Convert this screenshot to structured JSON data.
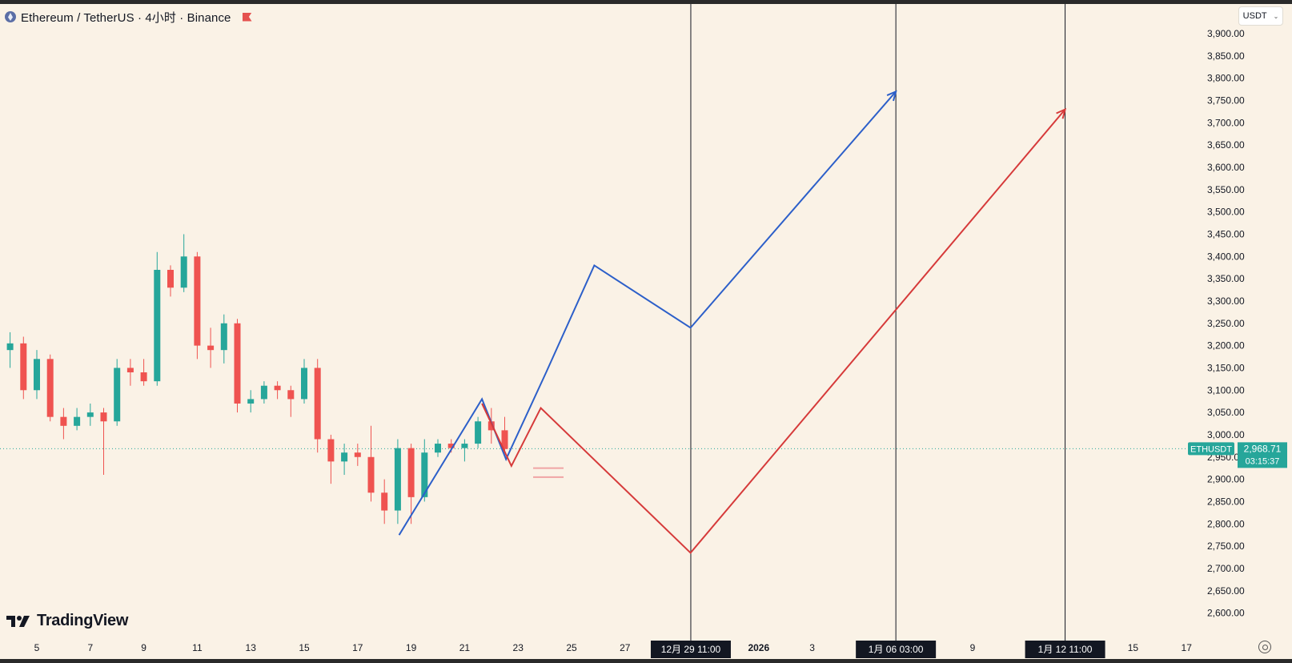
{
  "header": {
    "title": "Ethereum / TetherUS · 4小时 · Binance"
  },
  "currency_selector": {
    "label": "USDT"
  },
  "watermark": {
    "text": "TradingView"
  },
  "last_price": {
    "symbol": "ETHUSDT",
    "price": "2,968.71",
    "countdown": "03:15:37",
    "value": 2968.71
  },
  "colors": {
    "background": "#faf2e6",
    "up": "#26a69a",
    "down": "#ef5350",
    "blue_path": "#2c5fc9",
    "red_path": "#d63a3a",
    "price_tag": "#26a69a"
  },
  "icons": [
    "ethereum-logo-icon",
    "flag-icon",
    "chevron-down-icon",
    "tradingview-logo-icon",
    "settings-icon"
  ],
  "chart_data": {
    "type": "candlestick",
    "y_axis": {
      "min": 2600,
      "max": 3900,
      "ticks": [
        "3,900.00",
        "3,850.00",
        "3,800.00",
        "3,750.00",
        "3,700.00",
        "3,650.00",
        "3,600.00",
        "3,550.00",
        "3,500.00",
        "3,450.00",
        "3,400.00",
        "3,350.00",
        "3,300.00",
        "3,250.00",
        "3,200.00",
        "3,150.00",
        "3,100.00",
        "3,050.00",
        "3,000.00",
        "2,950.00",
        "2,900.00",
        "2,850.00",
        "2,800.00",
        "2,750.00",
        "2,700.00",
        "2,650.00",
        "2,600.00"
      ]
    },
    "x_axis": {
      "ticks": [
        {
          "label": "5",
          "day": 5
        },
        {
          "label": "7",
          "day": 7
        },
        {
          "label": "9",
          "day": 9
        },
        {
          "label": "11",
          "day": 11
        },
        {
          "label": "13",
          "day": 13
        },
        {
          "label": "15",
          "day": 15
        },
        {
          "label": "17",
          "day": 17
        },
        {
          "label": "19",
          "day": 19
        },
        {
          "label": "21",
          "day": 21
        },
        {
          "label": "23",
          "day": 23
        },
        {
          "label": "25",
          "day": 25
        },
        {
          "label": "27",
          "day": 27
        },
        {
          "label": "2026",
          "day": 32,
          "bold": true
        },
        {
          "label": "3",
          "day": 34
        },
        {
          "label": "9",
          "day": 40
        },
        {
          "label": "15",
          "day": 46
        },
        {
          "label": "17",
          "day": 48
        }
      ],
      "highlighted_labels": [
        {
          "label": "12月 29  11:00",
          "day": 29.46
        },
        {
          "label": "1月 06  03:00",
          "day": 37.13
        },
        {
          "label": "1月 12  11:00",
          "day": 43.46
        }
      ]
    },
    "vertical_markers": [
      {
        "day": 29.46
      },
      {
        "day": 37.13
      },
      {
        "day": 43.46
      }
    ],
    "horizontal_price_line": 2968.71,
    "daily_ohlc": [
      {
        "day": 3.5,
        "o": 3180,
        "h": 3240,
        "l": 3140,
        "c": 3190
      },
      {
        "day": 4.0,
        "o": 3190,
        "h": 3230,
        "l": 3150,
        "c": 3205
      },
      {
        "day": 4.5,
        "o": 3205,
        "h": 3220,
        "l": 3080,
        "c": 3100
      },
      {
        "day": 5.0,
        "o": 3100,
        "h": 3190,
        "l": 3080,
        "c": 3170
      },
      {
        "day": 5.5,
        "o": 3170,
        "h": 3180,
        "l": 3030,
        "c": 3040
      },
      {
        "day": 6.0,
        "o": 3040,
        "h": 3060,
        "l": 2990,
        "c": 3020
      },
      {
        "day": 6.5,
        "o": 3020,
        "h": 3060,
        "l": 3010,
        "c": 3040
      },
      {
        "day": 7.0,
        "o": 3040,
        "h": 3070,
        "l": 3020,
        "c": 3050
      },
      {
        "day": 7.5,
        "o": 3050,
        "h": 3060,
        "l": 2910,
        "c": 3030
      },
      {
        "day": 8.0,
        "o": 3030,
        "h": 3170,
        "l": 3020,
        "c": 3150
      },
      {
        "day": 8.5,
        "o": 3150,
        "h": 3170,
        "l": 3110,
        "c": 3140
      },
      {
        "day": 9.0,
        "o": 3140,
        "h": 3170,
        "l": 3110,
        "c": 3120
      },
      {
        "day": 9.5,
        "o": 3120,
        "h": 3410,
        "l": 3110,
        "c": 3370
      },
      {
        "day": 10.0,
        "o": 3370,
        "h": 3380,
        "l": 3310,
        "c": 3330
      },
      {
        "day": 10.5,
        "o": 3330,
        "h": 3450,
        "l": 3320,
        "c": 3400
      },
      {
        "day": 11.0,
        "o": 3400,
        "h": 3410,
        "l": 3170,
        "c": 3200
      },
      {
        "day": 11.5,
        "o": 3200,
        "h": 3240,
        "l": 3150,
        "c": 3190
      },
      {
        "day": 12.0,
        "o": 3190,
        "h": 3270,
        "l": 3160,
        "c": 3250
      },
      {
        "day": 12.5,
        "o": 3250,
        "h": 3260,
        "l": 3050,
        "c": 3070
      },
      {
        "day": 13.0,
        "o": 3070,
        "h": 3100,
        "l": 3050,
        "c": 3080
      },
      {
        "day": 13.5,
        "o": 3080,
        "h": 3120,
        "l": 3070,
        "c": 3110
      },
      {
        "day": 14.0,
        "o": 3110,
        "h": 3120,
        "l": 3080,
        "c": 3100
      },
      {
        "day": 14.5,
        "o": 3100,
        "h": 3110,
        "l": 3040,
        "c": 3080
      },
      {
        "day": 15.0,
        "o": 3080,
        "h": 3170,
        "l": 3070,
        "c": 3150
      },
      {
        "day": 15.5,
        "o": 3150,
        "h": 3170,
        "l": 2960,
        "c": 2990
      },
      {
        "day": 16.0,
        "o": 2990,
        "h": 3000,
        "l": 2890,
        "c": 2940
      },
      {
        "day": 16.5,
        "o": 2940,
        "h": 2980,
        "l": 2910,
        "c": 2960
      },
      {
        "day": 17.0,
        "o": 2960,
        "h": 2980,
        "l": 2930,
        "c": 2950
      },
      {
        "day": 17.5,
        "o": 2950,
        "h": 3020,
        "l": 2850,
        "c": 2870
      },
      {
        "day": 18.0,
        "o": 2870,
        "h": 2900,
        "l": 2800,
        "c": 2830
      },
      {
        "day": 18.5,
        "o": 2830,
        "h": 2990,
        "l": 2800,
        "c": 2970
      },
      {
        "day": 19.0,
        "o": 2970,
        "h": 2980,
        "l": 2800,
        "c": 2860
      },
      {
        "day": 19.5,
        "o": 2860,
        "h": 2990,
        "l": 2850,
        "c": 2960
      },
      {
        "day": 20.0,
        "o": 2960,
        "h": 2990,
        "l": 2950,
        "c": 2980
      },
      {
        "day": 20.5,
        "o": 2980,
        "h": 2990,
        "l": 2960,
        "c": 2970
      },
      {
        "day": 21.0,
        "o": 2970,
        "h": 2990,
        "l": 2940,
        "c": 2980
      },
      {
        "day": 21.5,
        "o": 2980,
        "h": 3040,
        "l": 2970,
        "c": 3030
      },
      {
        "day": 22.0,
        "o": 3030,
        "h": 3060,
        "l": 2980,
        "c": 3010
      },
      {
        "day": 22.5,
        "o": 3010,
        "h": 3040,
        "l": 2960,
        "c": 2968
      }
    ],
    "forecast_paths": [
      {
        "color": "blue",
        "points": [
          [
            18.55,
            2775
          ],
          [
            21.65,
            3080
          ],
          [
            22.55,
            2945
          ],
          [
            24.05,
            3140
          ],
          [
            25.85,
            3380
          ],
          [
            29.45,
            3240
          ],
          [
            37.13,
            3770
          ]
        ]
      },
      {
        "color": "red",
        "points": [
          [
            21.65,
            3070
          ],
          [
            22.75,
            2930
          ],
          [
            23.85,
            3060
          ],
          [
            29.45,
            2735
          ],
          [
            43.46,
            3730
          ]
        ]
      }
    ],
    "support_lines": [
      2925,
      2905
    ]
  }
}
